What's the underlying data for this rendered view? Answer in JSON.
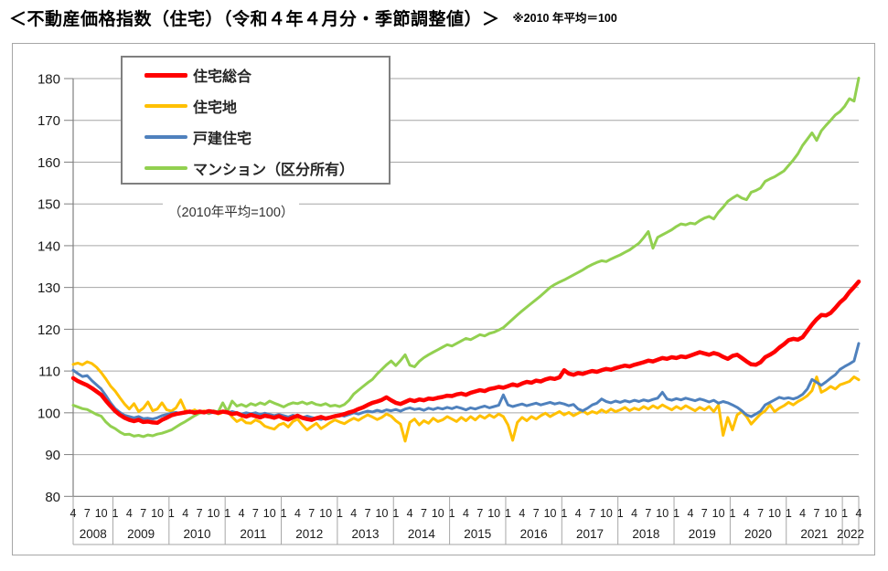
{
  "page": {
    "title": "＜不動産価格指数（住宅）（令和４年４月分・季節調整値）＞",
    "title_note": "※2010 年平均＝100"
  },
  "chart_data": {
    "type": "line",
    "title": "不動産価格指数（住宅）",
    "subtitle_note": "（2010年平均=100）",
    "x_frequency": "monthly",
    "x_start": "2008-04",
    "x_end": "2022-04",
    "x_month_labels_shown": [
      1,
      4,
      7,
      10
    ],
    "years": [
      2008,
      2009,
      2010,
      2011,
      2012,
      2013,
      2014,
      2015,
      2016,
      2017,
      2018,
      2019,
      2020,
      2021,
      2022
    ],
    "ylim": [
      80,
      180
    ],
    "y_ticks": [
      80,
      90,
      100,
      110,
      120,
      130,
      140,
      150,
      160,
      170,
      180
    ],
    "grid": true,
    "legend_position": "top-left",
    "grid_color": "#a6a6a6",
    "axis_color": "#7f7f7f",
    "series": [
      {
        "name": "住宅総合",
        "slug": "residential-total",
        "color": "#ff0000",
        "width": 4.5,
        "values": [
          108.3,
          107.6,
          107.1,
          106.6,
          105.9,
          105.1,
          104.3,
          102.9,
          101.6,
          100.4,
          99.5,
          98.8,
          98.3,
          98.0,
          98.3,
          97.8,
          97.9,
          97.7,
          97.6,
          98.3,
          98.8,
          99.4,
          99.7,
          99.9,
          100.1,
          100.3,
          100.0,
          100.3,
          100.1,
          100.4,
          100.2,
          100.0,
          100.3,
          100.1,
          99.7,
          99.9,
          99.4,
          99.1,
          99.5,
          99.2,
          98.9,
          99.3,
          99.1,
          98.8,
          99.2,
          98.7,
          98.4,
          98.9,
          99.3,
          98.8,
          98.5,
          98.3,
          98.7,
          99.0,
          98.6,
          98.9,
          99.2,
          99.4,
          99.7,
          100.1,
          100.4,
          100.9,
          101.3,
          101.9,
          102.4,
          102.7,
          103.1,
          103.7,
          103.0,
          102.4,
          102.1,
          102.6,
          103.1,
          102.8,
          103.2,
          103.0,
          103.4,
          103.3,
          103.6,
          103.8,
          104.1,
          104.0,
          104.4,
          104.6,
          104.3,
          104.8,
          105.1,
          105.4,
          105.2,
          105.7,
          105.9,
          106.2,
          106.0,
          106.4,
          106.8,
          106.5,
          107.0,
          107.4,
          107.2,
          107.7,
          107.5,
          108.0,
          108.3,
          108.1,
          108.5,
          110.2,
          109.4,
          109.1,
          109.5,
          109.3,
          109.7,
          110.0,
          109.8,
          110.2,
          110.5,
          110.3,
          110.7,
          111.0,
          111.3,
          111.1,
          111.5,
          111.8,
          112.1,
          112.5,
          112.3,
          112.7,
          113.1,
          112.9,
          113.3,
          113.1,
          113.5,
          113.3,
          113.7,
          114.1,
          114.5,
          114.2,
          113.9,
          114.3,
          114.0,
          113.4,
          112.9,
          113.6,
          113.9,
          113.1,
          112.3,
          111.6,
          111.5,
          112.1,
          113.3,
          113.9,
          114.6,
          115.6,
          116.4,
          117.4,
          117.7,
          117.5,
          118.1,
          119.6,
          121.1,
          122.4,
          123.4,
          123.3,
          123.9,
          125.1,
          126.4,
          127.4,
          128.9,
          130.1,
          131.4
        ]
      },
      {
        "name": "住宅地",
        "slug": "residential-land",
        "color": "#ffc000",
        "width": 3,
        "values": [
          111.6,
          111.9,
          111.5,
          112.2,
          111.8,
          110.9,
          109.6,
          108.1,
          106.4,
          105.2,
          103.6,
          102.1,
          100.9,
          102.2,
          100.3,
          101.1,
          102.6,
          100.5,
          100.9,
          102.4,
          100.7,
          100.4,
          101.2,
          103.1,
          100.6,
          100.2,
          100.7,
          100.0,
          100.5,
          99.8,
          100.3,
          99.7,
          100.1,
          100.4,
          99.0,
          97.9,
          98.5,
          97.6,
          97.5,
          98.3,
          97.8,
          96.8,
          96.4,
          96.1,
          97.1,
          97.5,
          96.6,
          97.9,
          98.5,
          97.1,
          95.9,
          96.7,
          97.5,
          96.2,
          96.9,
          97.7,
          98.3,
          97.8,
          97.4,
          98.1,
          98.7,
          98.2,
          98.9,
          99.5,
          99.0,
          98.4,
          98.9,
          99.7,
          99.2,
          98.1,
          97.3,
          93.2,
          97.7,
          98.5,
          97.1,
          98.1,
          97.5,
          98.7,
          97.9,
          98.3,
          99.1,
          98.5,
          97.9,
          98.9,
          98.1,
          99.1,
          98.3,
          99.3,
          98.7,
          99.5,
          98.9,
          99.7,
          99.1,
          97.1,
          93.4,
          97.7,
          98.9,
          98.1,
          99.1,
          98.5,
          99.3,
          99.9,
          99.1,
          99.7,
          100.3,
          99.5,
          100.1,
          99.3,
          99.9,
          100.5,
          99.7,
          100.3,
          99.9,
          100.7,
          100.1,
          100.9,
          100.3,
          100.7,
          101.3,
          100.5,
          101.1,
          100.7,
          101.5,
          100.9,
          101.7,
          101.1,
          101.9,
          101.3,
          100.7,
          101.5,
          100.9,
          101.7,
          101.1,
          100.5,
          101.3,
          100.7,
          101.5,
          100.3,
          101.9,
          94.6,
          98.9,
          95.9,
          99.5,
          100.3,
          99.1,
          97.3,
          98.5,
          99.7,
          100.5,
          101.9,
          100.3,
          101.1,
          101.7,
          102.5,
          101.9,
          102.7,
          103.3,
          104.1,
          105.3,
          108.6,
          104.9,
          105.5,
          106.3,
          105.7,
          106.7,
          107.1,
          107.5,
          108.6,
          107.9
        ]
      },
      {
        "name": "戸建住宅",
        "slug": "detached-house",
        "color": "#4f81bd",
        "width": 3,
        "values": [
          110.2,
          109.4,
          108.7,
          108.9,
          107.7,
          106.7,
          105.7,
          104.1,
          102.4,
          101.0,
          100.1,
          99.4,
          99.1,
          98.8,
          99.1,
          98.6,
          98.7,
          98.5,
          98.8,
          99.3,
          99.6,
          99.9,
          100.1,
          99.8,
          100.2,
          100.0,
          100.3,
          100.0,
          100.2,
          99.9,
          100.1,
          100.0,
          100.2,
          100.0,
          100.3,
          100.0,
          99.7,
          100.0,
          99.8,
          100.0,
          99.6,
          99.9,
          99.6,
          99.3,
          99.6,
          99.3,
          99.0,
          99.4,
          99.1,
          98.8,
          99.2,
          98.9,
          98.6,
          98.4,
          98.8,
          99.0,
          99.3,
          99.5,
          99.2,
          99.6,
          100.0,
          99.7,
          100.1,
          100.4,
          100.2,
          100.6,
          100.3,
          100.7,
          100.5,
          100.8,
          100.4,
          100.9,
          101.2,
          100.8,
          101.0,
          100.6,
          101.1,
          100.8,
          101.2,
          100.9,
          101.3,
          101.0,
          101.4,
          101.1,
          100.7,
          101.2,
          100.9,
          101.3,
          101.6,
          101.2,
          101.5,
          101.8,
          104.3,
          101.9,
          101.5,
          101.8,
          102.1,
          101.7,
          102.0,
          102.3,
          101.9,
          102.2,
          102.5,
          102.1,
          102.4,
          102.1,
          101.7,
          102.0,
          100.9,
          100.5,
          101.1,
          101.9,
          102.3,
          103.3,
          102.7,
          102.4,
          102.8,
          102.5,
          102.9,
          102.6,
          103.0,
          102.7,
          103.1,
          102.8,
          103.2,
          103.5,
          104.9,
          103.3,
          103.0,
          103.4,
          103.1,
          103.5,
          103.2,
          102.9,
          103.3,
          103.0,
          102.6,
          103.0,
          102.3,
          102.7,
          102.4,
          101.9,
          101.3,
          100.5,
          99.5,
          99.1,
          99.7,
          100.4,
          101.9,
          102.5,
          103.1,
          103.7,
          103.4,
          103.6,
          103.3,
          103.7,
          104.4,
          105.7,
          108.0,
          107.3,
          106.6,
          107.4,
          108.3,
          109.1,
          110.4,
          111.1,
          111.7,
          112.4,
          116.6
        ]
      },
      {
        "name": "マンション（区分所有）",
        "slug": "condominium",
        "color": "#92d050",
        "width": 3,
        "values": [
          101.8,
          101.4,
          101.0,
          100.8,
          100.2,
          99.6,
          99.2,
          97.8,
          96.8,
          96.2,
          95.4,
          94.8,
          94.9,
          94.4,
          94.6,
          94.3,
          94.7,
          94.5,
          94.9,
          95.1,
          95.5,
          95.9,
          96.6,
          97.3,
          97.9,
          98.6,
          99.3,
          99.9,
          100.2,
          100.0,
          100.5,
          100.2,
          102.4,
          100.3,
          102.8,
          101.6,
          102.0,
          101.5,
          102.2,
          101.8,
          102.4,
          102.0,
          102.8,
          102.3,
          101.9,
          101.4,
          102.0,
          102.4,
          102.2,
          102.6,
          102.1,
          102.5,
          102.0,
          101.8,
          102.2,
          101.6,
          101.8,
          101.5,
          102.0,
          103.0,
          104.5,
          105.4,
          106.3,
          107.2,
          108.0,
          109.3,
          110.4,
          111.5,
          112.4,
          111.3,
          112.5,
          113.9,
          111.4,
          111.0,
          112.3,
          113.2,
          113.9,
          114.5,
          115.1,
          115.7,
          116.3,
          116.0,
          116.6,
          117.2,
          117.8,
          117.5,
          118.1,
          118.7,
          118.4,
          119.0,
          119.3,
          119.8,
          120.4,
          121.4,
          122.4,
          123.4,
          124.4,
          125.3,
          126.2,
          127.1,
          128.0,
          129.0,
          130.0,
          130.7,
          131.3,
          131.8,
          132.4,
          133.0,
          133.6,
          134.2,
          134.9,
          135.5,
          136.0,
          136.4,
          136.2,
          136.8,
          137.3,
          137.8,
          138.4,
          139.0,
          139.8,
          140.6,
          141.9,
          143.4,
          139.4,
          142.0,
          142.6,
          143.2,
          143.8,
          144.6,
          145.2,
          145.0,
          145.4,
          145.2,
          146.0,
          146.6,
          147.0,
          146.4,
          148.0,
          149.2,
          150.6,
          151.4,
          152.1,
          151.4,
          151.0,
          152.8,
          153.2,
          153.8,
          155.4,
          156.0,
          156.5,
          157.2,
          157.9,
          159.2,
          160.5,
          162.0,
          164.0,
          165.5,
          167.0,
          165.2,
          167.5,
          168.8,
          170.0,
          171.3,
          172.1,
          173.4,
          175.2,
          174.6,
          180.1
        ]
      }
    ]
  }
}
